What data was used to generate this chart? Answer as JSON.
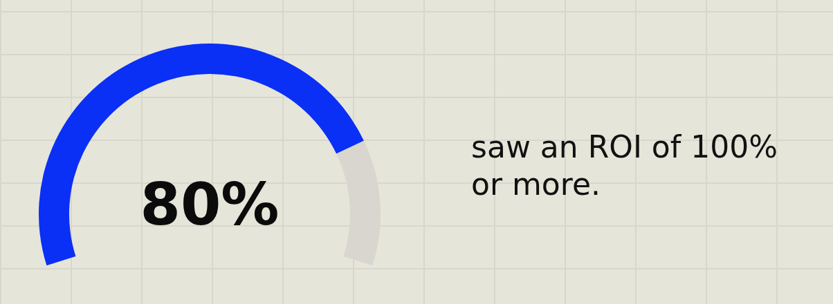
{
  "chart_data": {
    "type": "donut",
    "categories": [
      null,
      null
    ],
    "values": [
      80,
      20
    ],
    "colors": [
      "#0a2ff5",
      "#d9d6cf"
    ],
    "value_labels": [
      "80%",
      null
    ],
    "annotations": [
      "saw an ROI of 100% or more."
    ]
  }
}
